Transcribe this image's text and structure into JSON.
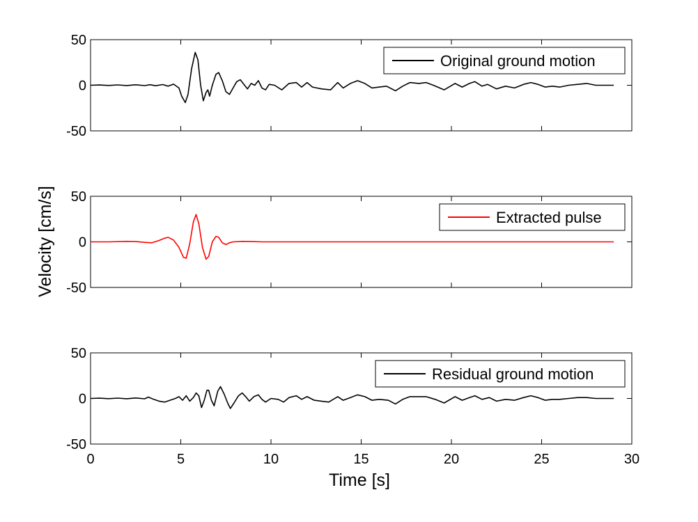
{
  "chart_data": {
    "type": "line",
    "xlabel": "Time [s]",
    "ylabel": "Velocity [cm/s]",
    "xlim": [
      0,
      30
    ],
    "xticks": [
      "0",
      "5",
      "10",
      "15",
      "20",
      "25",
      "30"
    ],
    "ylim": [
      -50,
      50
    ],
    "yticks": [
      "-50",
      "0",
      "50"
    ],
    "grid": false,
    "legend_position": "top-right",
    "panels": [
      {
        "series": [
          {
            "name": "Original ground motion",
            "color": "#000000",
            "points": [
              [
                0,
                0
              ],
              [
                0.5,
                0.3
              ],
              [
                1,
                -0.2
              ],
              [
                1.5,
                0.4
              ],
              [
                2,
                -0.3
              ],
              [
                2.5,
                0.5
              ],
              [
                3,
                -0.4
              ],
              [
                3.3,
                0.6
              ],
              [
                3.6,
                -0.5
              ],
              [
                4,
                0.8
              ],
              [
                4.3,
                -1
              ],
              [
                4.6,
                1.2
              ],
              [
                4.9,
                -3
              ],
              [
                5.05,
                -12
              ],
              [
                5.25,
                -19
              ],
              [
                5.4,
                -10
              ],
              [
                5.6,
                18
              ],
              [
                5.8,
                36
              ],
              [
                5.95,
                28
              ],
              [
                6.1,
                0
              ],
              [
                6.25,
                -17
              ],
              [
                6.4,
                -8
              ],
              [
                6.5,
                -5
              ],
              [
                6.6,
                -12
              ],
              [
                6.75,
                0
              ],
              [
                6.95,
                12
              ],
              [
                7.1,
                14
              ],
              [
                7.3,
                5
              ],
              [
                7.5,
                -7
              ],
              [
                7.7,
                -10
              ],
              [
                7.9,
                -3
              ],
              [
                8.1,
                4
              ],
              [
                8.3,
                6
              ],
              [
                8.5,
                1
              ],
              [
                8.7,
                -4
              ],
              [
                8.9,
                2
              ],
              [
                9.1,
                0
              ],
              [
                9.3,
                5
              ],
              [
                9.5,
                -3
              ],
              [
                9.7,
                -5
              ],
              [
                9.9,
                1
              ],
              [
                10.2,
                0
              ],
              [
                10.6,
                -5
              ],
              [
                11,
                2
              ],
              [
                11.4,
                3
              ],
              [
                11.7,
                -2
              ],
              [
                12,
                3
              ],
              [
                12.3,
                -2
              ],
              [
                12.8,
                -4
              ],
              [
                13.3,
                -5
              ],
              [
                13.7,
                3
              ],
              [
                14,
                -3
              ],
              [
                14.4,
                2
              ],
              [
                14.8,
                5
              ],
              [
                15.2,
                2
              ],
              [
                15.6,
                -3
              ],
              [
                16,
                -2
              ],
              [
                16.4,
                -1
              ],
              [
                16.9,
                -6
              ],
              [
                17.3,
                -1
              ],
              [
                17.7,
                3
              ],
              [
                18.2,
                2
              ],
              [
                18.6,
                3
              ],
              [
                19,
                0
              ],
              [
                19.6,
                -5
              ],
              [
                20.2,
                2
              ],
              [
                20.6,
                -2
              ],
              [
                21,
                2
              ],
              [
                21.3,
                4
              ],
              [
                21.7,
                -1
              ],
              [
                22,
                1
              ],
              [
                22.5,
                -4
              ],
              [
                23,
                -1
              ],
              [
                23.5,
                -3
              ],
              [
                24,
                1
              ],
              [
                24.4,
                3
              ],
              [
                24.8,
                1
              ],
              [
                25.2,
                -2
              ],
              [
                25.6,
                -1
              ],
              [
                26,
                -2
              ],
              [
                26.5,
                0
              ],
              [
                27,
                1
              ],
              [
                27.5,
                2
              ],
              [
                28,
                0
              ],
              [
                28.5,
                0
              ],
              [
                29,
                0
              ]
            ]
          }
        ]
      },
      {
        "series": [
          {
            "name": "Extracted pulse",
            "color": "#ff0000",
            "points": [
              [
                0,
                0
              ],
              [
                1,
                0
              ],
              [
                2,
                0.5
              ],
              [
                2.5,
                0.3
              ],
              [
                3,
                -0.5
              ],
              [
                3.4,
                -1
              ],
              [
                3.8,
                1.5
              ],
              [
                4.1,
                4
              ],
              [
                4.3,
                5
              ],
              [
                4.6,
                2
              ],
              [
                4.9,
                -6
              ],
              [
                5.15,
                -17
              ],
              [
                5.3,
                -18
              ],
              [
                5.5,
                -2
              ],
              [
                5.7,
                22
              ],
              [
                5.85,
                30
              ],
              [
                6,
                20
              ],
              [
                6.2,
                -6
              ],
              [
                6.4,
                -19
              ],
              [
                6.55,
                -16
              ],
              [
                6.75,
                0
              ],
              [
                6.95,
                6
              ],
              [
                7.1,
                5
              ],
              [
                7.3,
                -1
              ],
              [
                7.5,
                -3
              ],
              [
                7.7,
                -1
              ],
              [
                7.9,
                0
              ],
              [
                8.4,
                0.5
              ],
              [
                9,
                0.3
              ],
              [
                9.5,
                0
              ],
              [
                10,
                0
              ],
              [
                15,
                0
              ],
              [
                20,
                0
              ],
              [
                25,
                0
              ],
              [
                29,
                0
              ]
            ]
          }
        ]
      },
      {
        "series": [
          {
            "name": "Residual ground motion",
            "color": "#000000",
            "points": [
              [
                0,
                0
              ],
              [
                0.5,
                0.3
              ],
              [
                1,
                -0.2
              ],
              [
                1.5,
                0.4
              ],
              [
                2,
                -0.3
              ],
              [
                2.5,
                0.5
              ],
              [
                3,
                -0.4
              ],
              [
                3.2,
                1.5
              ],
              [
                3.5,
                -1
              ],
              [
                3.8,
                -3
              ],
              [
                4.1,
                -4
              ],
              [
                4.4,
                -2
              ],
              [
                4.7,
                0
              ],
              [
                4.9,
                2
              ],
              [
                5.1,
                -2
              ],
              [
                5.3,
                3
              ],
              [
                5.5,
                -3
              ],
              [
                5.7,
                1
              ],
              [
                5.85,
                6
              ],
              [
                6,
                3
              ],
              [
                6.15,
                -10
              ],
              [
                6.3,
                -2
              ],
              [
                6.45,
                9
              ],
              [
                6.55,
                9
              ],
              [
                6.7,
                -2
              ],
              [
                6.85,
                -8
              ],
              [
                7.05,
                8
              ],
              [
                7.2,
                13
              ],
              [
                7.4,
                5
              ],
              [
                7.6,
                -5
              ],
              [
                7.75,
                -11
              ],
              [
                7.95,
                -5
              ],
              [
                8.2,
                3
              ],
              [
                8.4,
                6
              ],
              [
                8.6,
                2
              ],
              [
                8.8,
                -3
              ],
              [
                9.05,
                2
              ],
              [
                9.3,
                4
              ],
              [
                9.5,
                -1
              ],
              [
                9.7,
                -4
              ],
              [
                10,
                0
              ],
              [
                10.4,
                -1
              ],
              [
                10.7,
                -4
              ],
              [
                11,
                1
              ],
              [
                11.4,
                3
              ],
              [
                11.7,
                -1
              ],
              [
                12,
                2
              ],
              [
                12.4,
                -2
              ],
              [
                12.8,
                -3
              ],
              [
                13.2,
                -4
              ],
              [
                13.7,
                2
              ],
              [
                14,
                -2
              ],
              [
                14.4,
                1
              ],
              [
                14.8,
                4
              ],
              [
                15.2,
                2
              ],
              [
                15.6,
                -2
              ],
              [
                16,
                -1
              ],
              [
                16.5,
                -2
              ],
              [
                16.9,
                -6
              ],
              [
                17.3,
                -1
              ],
              [
                17.7,
                2
              ],
              [
                18.2,
                2
              ],
              [
                18.6,
                2
              ],
              [
                19.1,
                -1
              ],
              [
                19.6,
                -5
              ],
              [
                20.2,
                2
              ],
              [
                20.6,
                -2
              ],
              [
                21,
                1
              ],
              [
                21.3,
                3
              ],
              [
                21.7,
                -1
              ],
              [
                22.1,
                1
              ],
              [
                22.5,
                -3
              ],
              [
                23,
                -1
              ],
              [
                23.5,
                -2
              ],
              [
                24,
                1
              ],
              [
                24.4,
                3
              ],
              [
                24.8,
                1
              ],
              [
                25.2,
                -2
              ],
              [
                25.6,
                -1
              ],
              [
                26,
                -1
              ],
              [
                26.5,
                0
              ],
              [
                27,
                1
              ],
              [
                27.5,
                1
              ],
              [
                28,
                0
              ],
              [
                28.5,
                0
              ],
              [
                29,
                0
              ]
            ]
          }
        ]
      }
    ]
  }
}
